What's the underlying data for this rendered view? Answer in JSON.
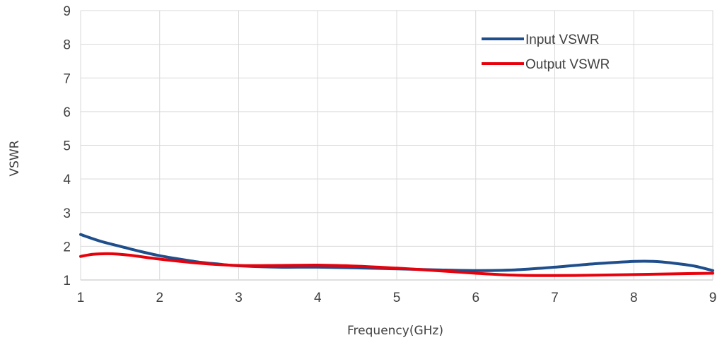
{
  "chart_data": {
    "type": "line",
    "xlabel": "Frequency(GHz)",
    "ylabel": "VSWR",
    "xlim": [
      1,
      9
    ],
    "ylim": [
      1,
      9
    ],
    "x_ticks": [
      "1",
      "2",
      "3",
      "4",
      "5",
      "6",
      "7",
      "8",
      "9"
    ],
    "y_ticks": [
      "1",
      "2",
      "3",
      "4",
      "5",
      "6",
      "7",
      "8",
      "9"
    ],
    "grid": true,
    "legend_position": "top-right",
    "series": [
      {
        "name": "Input VSWR",
        "color": "#1f4e8c",
        "x": [
          1,
          1.25,
          1.5,
          1.75,
          2,
          2.25,
          2.5,
          2.75,
          3,
          3.5,
          4,
          4.5,
          5,
          5.5,
          6,
          6.5,
          7,
          7.5,
          8,
          8.25,
          8.5,
          8.75,
          9
        ],
        "y": [
          2.35,
          2.15,
          2.0,
          1.85,
          1.72,
          1.62,
          1.53,
          1.47,
          1.42,
          1.38,
          1.38,
          1.36,
          1.33,
          1.3,
          1.28,
          1.3,
          1.38,
          1.48,
          1.55,
          1.55,
          1.5,
          1.42,
          1.28
        ]
      },
      {
        "name": "Output VSWR",
        "color": "#e8000b",
        "x": [
          1,
          1.15,
          1.35,
          1.6,
          2,
          2.5,
          3,
          3.5,
          4,
          4.5,
          5,
          5.5,
          6,
          6.5,
          7,
          7.5,
          8,
          8.5,
          9
        ],
        "y": [
          1.7,
          1.76,
          1.78,
          1.74,
          1.62,
          1.5,
          1.43,
          1.43,
          1.44,
          1.41,
          1.35,
          1.28,
          1.2,
          1.14,
          1.13,
          1.14,
          1.16,
          1.18,
          1.2
        ]
      }
    ]
  }
}
